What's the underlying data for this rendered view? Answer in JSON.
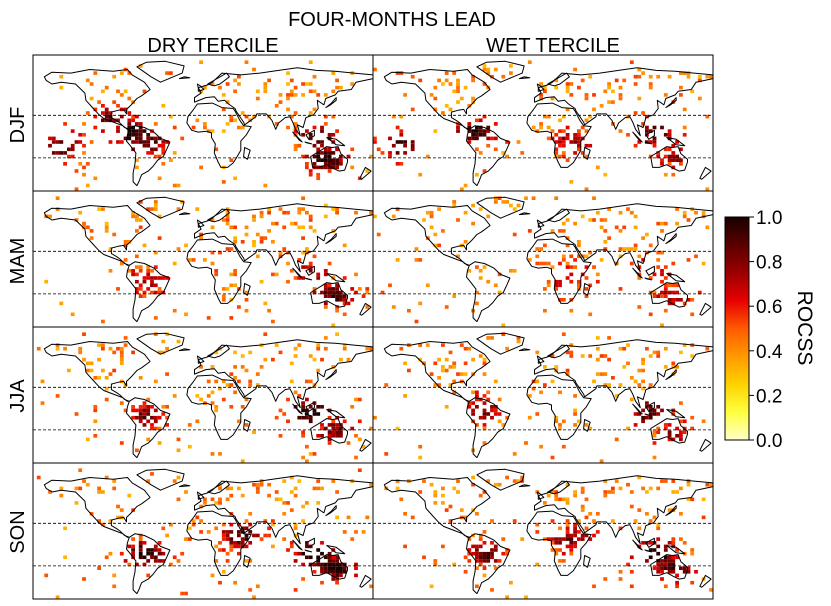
{
  "figure": {
    "title": "FOUR-MONTHS LEAD",
    "columns": [
      "DRY TERCILE",
      "WET TERCILE"
    ],
    "rows": [
      "DJF",
      "MAM",
      "JJA",
      "SON"
    ]
  },
  "colorbar": {
    "title": "ROCSS",
    "ticks": [
      "1.0",
      "0.8",
      "0.6",
      "0.4",
      "0.2",
      "0.0"
    ],
    "stops": [
      "#ffffc8",
      "#ffff40",
      "#ffd200",
      "#ff9a00",
      "#ff5a00",
      "#e80000",
      "#9c0000",
      "#5a0000",
      "#1a0000"
    ]
  },
  "map": {
    "coastline_color": "#000000",
    "tropic_lines": "dashed"
  },
  "chart_data": {
    "type": "heatmap",
    "title": "FOUR-MONTHS LEAD",
    "xlabel": "",
    "ylabel": "",
    "value_range": [
      0.0,
      1.0
    ],
    "panels": [
      {
        "season": "DJF",
        "tercile": "DRY TERCILE",
        "hotspots": [
          {
            "lon": -75,
            "lat": 5,
            "value": 0.8
          },
          {
            "lon": -60,
            "lat": -5,
            "value": 0.6
          },
          {
            "lon": 130,
            "lat": -25,
            "value": 0.7
          },
          {
            "lon": 120,
            "lat": 0,
            "value": 0.6
          },
          {
            "lon": -150,
            "lat": -10,
            "value": 0.6
          },
          {
            "lon": -100,
            "lat": 20,
            "value": 0.5
          }
        ]
      },
      {
        "season": "DJF",
        "tercile": "WET TERCILE",
        "hotspots": [
          {
            "lon": -70,
            "lat": 5,
            "value": 0.7
          },
          {
            "lon": 120,
            "lat": 5,
            "value": 0.6
          },
          {
            "lon": 30,
            "lat": -5,
            "value": 0.4
          },
          {
            "lon": -150,
            "lat": -10,
            "value": 0.6
          },
          {
            "lon": 140,
            "lat": -20,
            "value": 0.4
          }
        ]
      },
      {
        "season": "MAM",
        "tercile": "DRY TERCILE",
        "hotspots": [
          {
            "lon": 140,
            "lat": -25,
            "value": 0.6
          },
          {
            "lon": -60,
            "lat": -10,
            "value": 0.4
          },
          {
            "lon": 115,
            "lat": 0,
            "value": 0.4
          }
        ]
      },
      {
        "season": "MAM",
        "tercile": "WET TERCILE",
        "hotspots": [
          {
            "lon": 140,
            "lat": -25,
            "value": 0.4
          },
          {
            "lon": 30,
            "lat": -5,
            "value": 0.4
          },
          {
            "lon": 115,
            "lat": 0,
            "value": 0.3
          }
        ]
      },
      {
        "season": "JJA",
        "tercile": "DRY TERCILE",
        "hotspots": [
          {
            "lon": 115,
            "lat": -5,
            "value": 0.8
          },
          {
            "lon": -60,
            "lat": -10,
            "value": 0.5
          },
          {
            "lon": 140,
            "lat": -25,
            "value": 0.5
          }
        ]
      },
      {
        "season": "JJA",
        "tercile": "WET TERCILE",
        "hotspots": [
          {
            "lon": 115,
            "lat": -5,
            "value": 0.6
          },
          {
            "lon": -65,
            "lat": 0,
            "value": 0.5
          },
          {
            "lon": 140,
            "lat": -25,
            "value": 0.4
          }
        ]
      },
      {
        "season": "SON",
        "tercile": "DRY TERCILE",
        "hotspots": [
          {
            "lon": 120,
            "lat": -10,
            "value": 0.9
          },
          {
            "lon": 140,
            "lat": -25,
            "value": 0.8
          },
          {
            "lon": -60,
            "lat": -10,
            "value": 0.7
          },
          {
            "lon": 40,
            "lat": 10,
            "value": 0.6
          }
        ]
      },
      {
        "season": "SON",
        "tercile": "WET TERCILE",
        "hotspots": [
          {
            "lon": 120,
            "lat": -10,
            "value": 0.8
          },
          {
            "lon": 140,
            "lat": -25,
            "value": 0.6
          },
          {
            "lon": -60,
            "lat": -10,
            "value": 0.6
          },
          {
            "lon": 30,
            "lat": 5,
            "value": 0.5
          }
        ]
      }
    ]
  }
}
